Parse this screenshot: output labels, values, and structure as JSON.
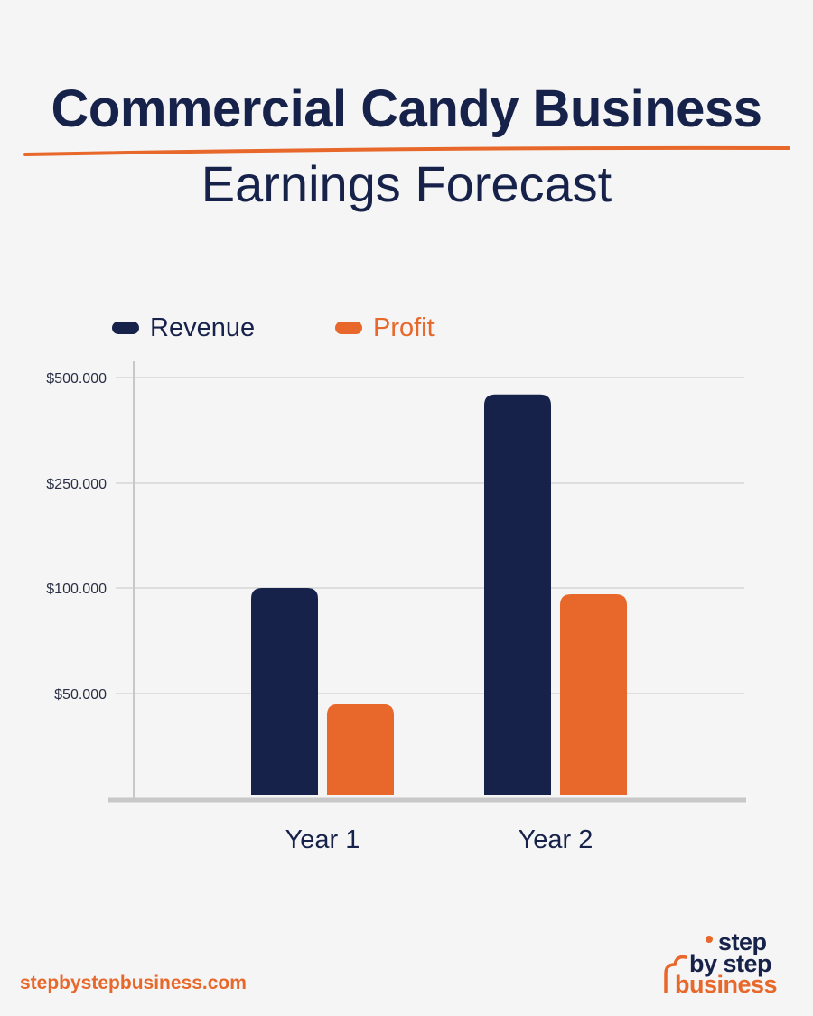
{
  "title": "Commercial Candy Business",
  "subtitle": "Earnings Forecast",
  "colors": {
    "navy": "#17224a",
    "orange": "#e8672a",
    "background": "#f5f5f5",
    "grid": "#d6d6d6",
    "axis": "#c8c8c8"
  },
  "legend": [
    {
      "label": "Revenue",
      "color": "#17224a"
    },
    {
      "label": "Profit",
      "color": "#e8672a"
    }
  ],
  "chart_data": {
    "type": "bar",
    "categories": [
      "Year 1",
      "Year 2"
    ],
    "series": [
      {
        "name": "Revenue",
        "color": "#17224a",
        "values": [
          100000,
          460000
        ]
      },
      {
        "name": "Profit",
        "color": "#e8672a",
        "values": [
          45000,
          97000
        ]
      }
    ],
    "y_ticks": [
      {
        "value": 50000,
        "label": "$50.000"
      },
      {
        "value": 100000,
        "label": "$100.000"
      },
      {
        "value": 250000,
        "label": "$250.000"
      },
      {
        "value": 500000,
        "label": "$500.000"
      }
    ],
    "y_scale": "nonlinear (tick-interpolated)",
    "xlabel": "",
    "ylabel": "",
    "grid": true,
    "legend_position": "top-left"
  },
  "footer": {
    "url": "stepbystepbusiness.com",
    "logo_lines": [
      "step",
      "by step",
      "business"
    ],
    "logo_icon": "cloud-dot-icon"
  }
}
